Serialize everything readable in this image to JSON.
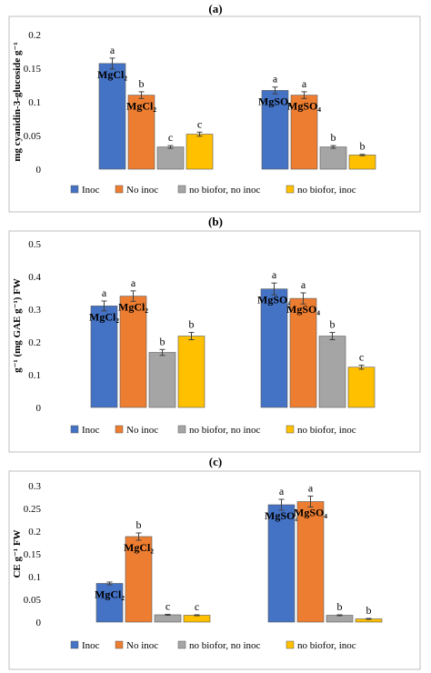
{
  "colors": {
    "series": [
      "#4472C4",
      "#ED7D31",
      "#A5A5A5",
      "#FFC000"
    ],
    "frame": "#BFBFBF",
    "error": "#404040"
  },
  "chart_data": [
    {
      "type": "bar",
      "panel": "(a)",
      "ylabel": "mg cyanidin-3-glucoside g⁻¹",
      "ylim": [
        0,
        0.2
      ],
      "yticks": [
        "0",
        "0.05",
        "0.1",
        "0.15",
        "0.2"
      ],
      "tick_values": [
        0,
        0.05,
        0.1,
        0.15,
        0.2
      ],
      "legend_position": "bottom",
      "groups": [
        {
          "bars": [
            {
              "value": 0.157,
              "err": 0.008,
              "letter": "a",
              "label": "MgCl₂",
              "label_pos": "inside"
            },
            {
              "value": 0.11,
              "err": 0.005,
              "letter": "b",
              "label": "MgCl₂",
              "label_pos": "inside"
            },
            {
              "value": 0.033,
              "err": 0.002,
              "letter": "c",
              "label": ""
            },
            {
              "value": 0.052,
              "err": 0.003,
              "letter": "c",
              "label": ""
            }
          ]
        },
        {
          "bars": [
            {
              "value": 0.117,
              "err": 0.005,
              "letter": "a",
              "label": "MgSO₄",
              "label_pos": "inside"
            },
            {
              "value": 0.11,
              "err": 0.005,
              "letter": "a",
              "label": "MgSO₄",
              "label_pos": "inside"
            },
            {
              "value": 0.033,
              "err": 0.002,
              "letter": "b",
              "label": ""
            },
            {
              "value": 0.021,
              "err": 0.001,
              "letter": "b",
              "label": ""
            }
          ]
        }
      ],
      "series": [
        {
          "name": "Inoc"
        },
        {
          "name": "No inoc"
        },
        {
          "name": "no biofor, no inoc"
        },
        {
          "name": "no biofor, inoc"
        }
      ]
    },
    {
      "type": "bar",
      "panel": "(b)",
      "ylabel": "g⁻¹ (mg GAE g⁻¹) FW",
      "ylim": [
        0,
        0.5
      ],
      "yticks": [
        "0",
        "0.1",
        "0.2",
        "0.3",
        "0.4",
        "0.5"
      ],
      "tick_values": [
        0,
        0.1,
        0.2,
        0.3,
        0.4,
        0.5
      ],
      "legend_position": "bottom",
      "groups": [
        {
          "bars": [
            {
              "value": 0.31,
              "err": 0.015,
              "letter": "a",
              "label": "MgCl₂",
              "label_pos": "inside"
            },
            {
              "value": 0.34,
              "err": 0.016,
              "letter": "a",
              "label": "MgCl₂",
              "label_pos": "inside"
            },
            {
              "value": 0.168,
              "err": 0.009,
              "letter": "b",
              "label": ""
            },
            {
              "value": 0.218,
              "err": 0.011,
              "letter": "b",
              "label": ""
            }
          ]
        },
        {
          "bars": [
            {
              "value": 0.362,
              "err": 0.018,
              "letter": "a",
              "label": "MgSO₄",
              "label_pos": "inside"
            },
            {
              "value": 0.333,
              "err": 0.017,
              "letter": "a",
              "label": "MgSO₄",
              "label_pos": "inside"
            },
            {
              "value": 0.218,
              "err": 0.011,
              "letter": "b",
              "label": ""
            },
            {
              "value": 0.123,
              "err": 0.006,
              "letter": "c",
              "label": ""
            }
          ]
        }
      ],
      "series": [
        {
          "name": "Inoc"
        },
        {
          "name": "No inoc"
        },
        {
          "name": "no biofor, no inoc"
        },
        {
          "name": "no biofor, inoc"
        }
      ]
    },
    {
      "type": "bar",
      "panel": "(c)",
      "ylabel": "CE g⁻¹ FW",
      "ylim": [
        0,
        0.3
      ],
      "yticks": [
        "0",
        "0.05",
        "0.1",
        "0.15",
        "0.2",
        "0.25",
        "0.3"
      ],
      "tick_values": [
        0,
        0.05,
        0.1,
        0.15,
        0.2,
        0.25,
        0.3
      ],
      "legend_position": "bottom",
      "groups": [
        {
          "bars": [
            {
              "value": 0.085,
              "err": 0.003,
              "letter": "",
              "label": "MgCl₂",
              "label_pos": "inside"
            },
            {
              "value": 0.188,
              "err": 0.008,
              "letter": "b",
              "label": "MgCl₂",
              "label_pos": "inside"
            },
            {
              "value": 0.016,
              "err": 0.001,
              "letter": "c",
              "label": ""
            },
            {
              "value": 0.015,
              "err": 0.001,
              "letter": "c",
              "label": ""
            }
          ]
        },
        {
          "bars": [
            {
              "value": 0.258,
              "err": 0.012,
              "letter": "a",
              "label": "MgSO₄",
              "label_pos": "inside"
            },
            {
              "value": 0.265,
              "err": 0.012,
              "letter": "a",
              "label": "MgSO₄",
              "label_pos": "inside"
            },
            {
              "value": 0.015,
              "err": 0.001,
              "letter": "b",
              "label": ""
            },
            {
              "value": 0.007,
              "err": 0.001,
              "letter": "b",
              "label": ""
            }
          ]
        }
      ],
      "series": [
        {
          "name": "Inoc"
        },
        {
          "name": "No inoc"
        },
        {
          "name": "no biofor, no inoc"
        },
        {
          "name": "no biofor, inoc"
        }
      ]
    }
  ]
}
